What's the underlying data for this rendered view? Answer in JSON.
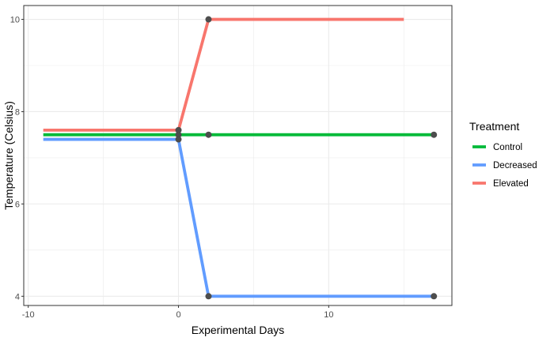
{
  "chart_data": {
    "type": "line",
    "xlabel": "Experimental Days",
    "ylabel": "Temperature (Celsius)",
    "xlim": [
      -10.3,
      18.2
    ],
    "ylim": [
      3.8,
      10.3
    ],
    "x_ticks": [
      -10,
      0,
      10
    ],
    "y_ticks": [
      4,
      6,
      8,
      10
    ],
    "x_tick_labels": [
      "-10",
      "0",
      "10"
    ],
    "y_tick_labels": [
      "4",
      "6",
      "8",
      "10"
    ],
    "grid": true,
    "legend": {
      "title": "Treatment",
      "position": "right"
    },
    "series": [
      {
        "name": "Control",
        "color": "#00BA38",
        "line": [
          [
            -9,
            7.5
          ],
          [
            0,
            7.5
          ],
          [
            17,
            7.5
          ]
        ],
        "points": [
          [
            0,
            7.5
          ],
          [
            2,
            7.5
          ],
          [
            17,
            7.5
          ]
        ]
      },
      {
        "name": "Decreased",
        "color": "#619CFF",
        "line": [
          [
            -9,
            7.4
          ],
          [
            0,
            7.4
          ],
          [
            2,
            4
          ],
          [
            17,
            4
          ]
        ],
        "points": [
          [
            0,
            7.4
          ],
          [
            2,
            4
          ],
          [
            17,
            4
          ]
        ]
      },
      {
        "name": "Elevated",
        "color": "#F8766D",
        "line": [
          [
            -9,
            7.6
          ],
          [
            0,
            7.6
          ],
          [
            2,
            10
          ],
          [
            15,
            10
          ]
        ],
        "points": [
          [
            0,
            7.6
          ],
          [
            2,
            10
          ]
        ]
      }
    ],
    "point_color": "#4d4d4d"
  }
}
